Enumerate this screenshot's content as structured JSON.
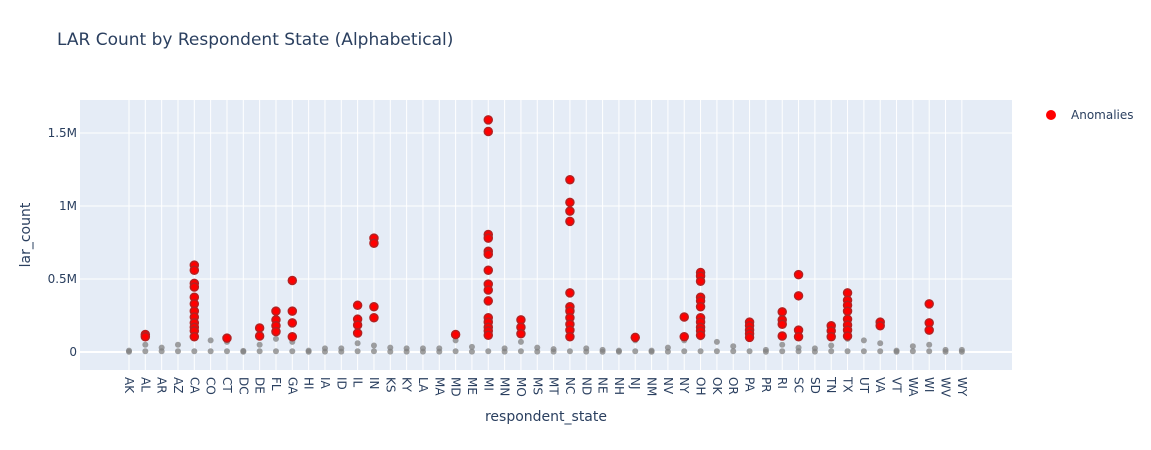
{
  "chart_data": {
    "type": "scatter",
    "title": "LAR Count by Respondent State (Alphabetical)",
    "x_label": "respondent_state",
    "y_label": "lar_count",
    "categories": [
      "AK",
      "AL",
      "AR",
      "AZ",
      "CA",
      "CO",
      "CT",
      "DC",
      "DE",
      "FL",
      "GA",
      "HI",
      "IA",
      "ID",
      "IL",
      "IN",
      "KS",
      "KY",
      "LA",
      "MA",
      "MD",
      "ME",
      "MI",
      "MN",
      "MO",
      "MS",
      "MT",
      "NC",
      "ND",
      "NE",
      "NH",
      "NJ",
      "NM",
      "NV",
      "NY",
      "OH",
      "OK",
      "OR",
      "PA",
      "PR",
      "RI",
      "SC",
      "SD",
      "TN",
      "TX",
      "UT",
      "VA",
      "VT",
      "WA",
      "WI",
      "WV",
      "WY"
    ],
    "ylim": [
      -123000,
      1726000
    ],
    "yticks": [
      0,
      {
        "value": 500000,
        "label": "0.5M"
      },
      {
        "value": 1000000,
        "label": "1M"
      },
      {
        "value": 1500000,
        "label": "1.5M"
      }
    ],
    "grid": true,
    "legend_position": "top-right",
    "series": [
      {
        "color": "#808080",
        "x": [
          "AK",
          "AK",
          "AL",
          "AL",
          "AR",
          "AR",
          "AZ",
          "AZ",
          "CA",
          "CA",
          "CO",
          "CO",
          "CT",
          "CT",
          "DC",
          "DC",
          "DE",
          "DE",
          "FL",
          "FL",
          "GA",
          "GA",
          "HI",
          "HI",
          "IA",
          "IA",
          "ID",
          "ID",
          "IL",
          "IL",
          "IN",
          "IN",
          "KS",
          "KS",
          "KY",
          "KY",
          "LA",
          "LA",
          "MA",
          "MA",
          "MD",
          "MD",
          "ME",
          "ME",
          "MI",
          "MI",
          "MN",
          "MN",
          "MO",
          "MO",
          "MS",
          "MS",
          "MT",
          "MT",
          "NC",
          "NC",
          "ND",
          "ND",
          "NE",
          "NE",
          "NH",
          "NH",
          "NJ",
          "NJ",
          "NM",
          "NM",
          "NV",
          "NV",
          "NY",
          "NY",
          "OH",
          "OH",
          "OK",
          "OK",
          "OR",
          "OR",
          "PA",
          "PA",
          "PR",
          "PR",
          "RI",
          "RI",
          "SC",
          "SC",
          "SD",
          "SD",
          "TN",
          "TN",
          "TX",
          "TX",
          "UT",
          "UT",
          "VA",
          "VA",
          "VT",
          "VT",
          "WA",
          "WA",
          "WI",
          "WI",
          "WV",
          "WV",
          "WY",
          "WY"
        ],
        "values": [
          2000,
          10000,
          5000,
          50000,
          5000,
          30000,
          5000,
          50000,
          5000,
          100000,
          5000,
          80000,
          5000,
          70000,
          2000,
          8000,
          5000,
          50000,
          5000,
          90000,
          5000,
          70000,
          2000,
          10000,
          3000,
          25000,
          3000,
          25000,
          5000,
          60000,
          5000,
          45000,
          3000,
          30000,
          3000,
          25000,
          3000,
          25000,
          3000,
          25000,
          5000,
          80000,
          3000,
          35000,
          5000,
          150000,
          3000,
          25000,
          5000,
          70000,
          3000,
          30000,
          3000,
          20000,
          5000,
          100000,
          3000,
          25000,
          2000,
          15000,
          2000,
          10000,
          5000,
          80000,
          2000,
          10000,
          3000,
          30000,
          5000,
          80000,
          5000,
          100000,
          5000,
          70000,
          5000,
          40000,
          5000,
          90000,
          2000,
          15000,
          5000,
          50000,
          5000,
          30000,
          3000,
          25000,
          5000,
          45000,
          5000,
          90000,
          5000,
          80000,
          5000,
          60000,
          2000,
          10000,
          5000,
          40000,
          5000,
          50000,
          2000,
          15000,
          2000,
          15000
        ]
      },
      {
        "name": "Anomalies",
        "color": "#ff0000",
        "x": [
          "AL",
          "AL",
          "CA",
          "CA",
          "CA",
          "CA",
          "CA",
          "CA",
          "CA",
          "CA",
          "CA",
          "CA",
          "CA",
          "CA",
          "CT",
          "DE",
          "DE",
          "FL",
          "FL",
          "FL",
          "FL",
          "GA",
          "GA",
          "GA",
          "GA",
          "IL",
          "IL",
          "IL",
          "IL",
          "IN",
          "IN",
          "IN",
          "IN",
          "MD",
          "MI",
          "MI",
          "MI",
          "MI",
          "MI",
          "MI",
          "MI",
          "MI",
          "MI",
          "MI",
          "MI",
          "MI",
          "MI",
          "MI",
          "MI",
          "MO",
          "MO",
          "MO",
          "NC",
          "NC",
          "NC",
          "NC",
          "NC",
          "NC",
          "NC",
          "NC",
          "NC",
          "NC",
          "NC",
          "NJ",
          "NY",
          "NY",
          "OH",
          "OH",
          "OH",
          "OH",
          "OH",
          "OH",
          "OH",
          "OH",
          "OH",
          "OH",
          "OH",
          "PA",
          "PA",
          "PA",
          "PA",
          "PA",
          "RI",
          "RI",
          "RI",
          "RI",
          "SC",
          "SC",
          "SC",
          "SC",
          "TN",
          "TN",
          "TN",
          "TX",
          "TX",
          "TX",
          "TX",
          "TX",
          "TX",
          "TX",
          "TX",
          "VA",
          "VA",
          "WI",
          "WI",
          "WI"
        ],
        "values": [
          120000,
          105000,
          595000,
          560000,
          470000,
          445000,
          375000,
          330000,
          280000,
          240000,
          200000,
          170000,
          145000,
          105000,
          95000,
          165000,
          110000,
          280000,
          220000,
          180000,
          140000,
          490000,
          280000,
          200000,
          105000,
          320000,
          225000,
          185000,
          130000,
          780000,
          745000,
          310000,
          235000,
          120000,
          1590000,
          1510000,
          805000,
          780000,
          690000,
          670000,
          560000,
          465000,
          425000,
          350000,
          235000,
          205000,
          170000,
          145000,
          115000,
          220000,
          170000,
          125000,
          1180000,
          1025000,
          965000,
          895000,
          405000,
          310000,
          280000,
          235000,
          190000,
          150000,
          105000,
          100000,
          240000,
          105000,
          545000,
          520000,
          485000,
          375000,
          350000,
          310000,
          235000,
          205000,
          170000,
          145000,
          115000,
          205000,
          180000,
          150000,
          125000,
          100000,
          275000,
          220000,
          190000,
          110000,
          530000,
          385000,
          150000,
          105000,
          180000,
          145000,
          105000,
          405000,
          355000,
          320000,
          280000,
          225000,
          185000,
          150000,
          110000,
          205000,
          180000,
          330000,
          200000,
          150000
        ]
      }
    ]
  }
}
